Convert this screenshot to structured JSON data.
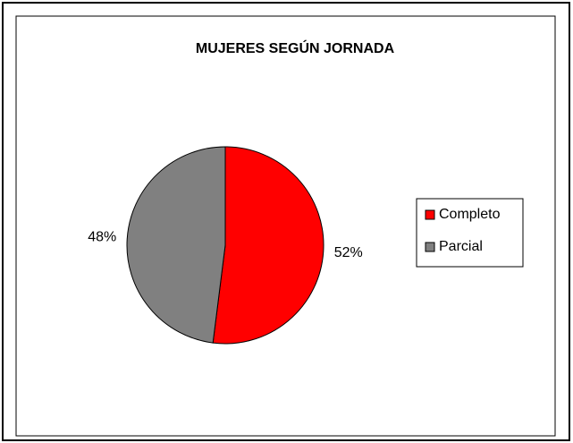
{
  "chart_data": {
    "type": "pie",
    "title": "MUJERES SEGÚN JORNADA",
    "categories": [
      "Completo",
      "Parcial"
    ],
    "values": [
      52,
      48
    ],
    "value_labels": [
      "52%",
      "48%"
    ],
    "colors": [
      "#ff0000",
      "#808080"
    ],
    "legend": "right"
  }
}
